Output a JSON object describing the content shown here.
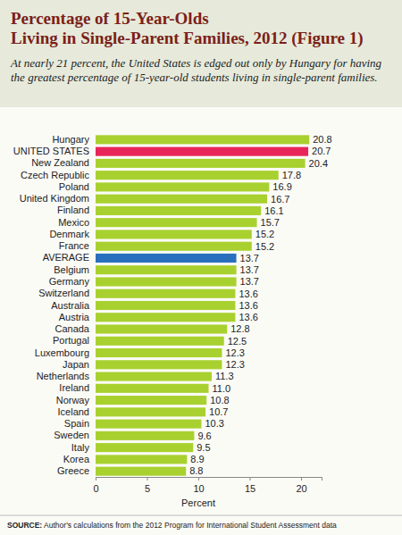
{
  "chart_data": {
    "type": "bar",
    "orientation": "horizontal",
    "title": [
      "Percentage of 15-Year-Olds",
      "Living in Single-Parent Families, 2012 (Figure 1)"
    ],
    "subtitle": "At nearly 21 percent, the United States is edged out only by Hungary for having the greatest percentage of 15-year-old students living in single-parent families.",
    "categories": [
      "Hungary",
      "UNITED STATES",
      "New Zealand",
      "Czech Republic",
      "Poland",
      "United Kingdom",
      "Finland",
      "Mexico",
      "Denmark",
      "France",
      "AVERAGE",
      "Belgium",
      "Germany",
      "Switzerland",
      "Australia",
      "Austria",
      "Canada",
      "Portugal",
      "Luxembourg",
      "Japan",
      "Netherlands",
      "Ireland",
      "Norway",
      "Iceland",
      "Spain",
      "Sweden",
      "Italy",
      "Korea",
      "Greece"
    ],
    "values": [
      20.8,
      20.7,
      20.4,
      17.8,
      16.9,
      16.7,
      16.1,
      15.7,
      15.2,
      15.2,
      13.7,
      13.7,
      13.7,
      13.6,
      13.6,
      13.6,
      12.8,
      12.5,
      12.3,
      12.3,
      11.3,
      11.0,
      10.8,
      10.7,
      10.3,
      9.6,
      9.5,
      8.9,
      8.8
    ],
    "value_labels": [
      "20.8",
      "20.7",
      "20.4",
      "17.8",
      "16.9",
      "16.7",
      "16.1",
      "15.7",
      "15.2",
      "15.2",
      "13.7",
      "13.7",
      "13.7",
      "13.6",
      "13.6",
      "13.6",
      "12.8",
      "12.5",
      "12.3",
      "12.3",
      "11.3",
      "11.0",
      "10.8",
      "10.7",
      "10.3",
      "9.6",
      "9.5",
      "8.9",
      "8.8"
    ],
    "colors": [
      "#a8d12f",
      "#e8265a",
      "#a8d12f",
      "#a8d12f",
      "#a8d12f",
      "#a8d12f",
      "#a8d12f",
      "#a8d12f",
      "#a8d12f",
      "#a8d12f",
      "#2a6fbd",
      "#a8d12f",
      "#a8d12f",
      "#a8d12f",
      "#a8d12f",
      "#a8d12f",
      "#a8d12f",
      "#a8d12f",
      "#a8d12f",
      "#a8d12f",
      "#a8d12f",
      "#a8d12f",
      "#a8d12f",
      "#a8d12f",
      "#a8d12f",
      "#a8d12f",
      "#a8d12f",
      "#a8d12f",
      "#a8d12f"
    ],
    "data_labels": true,
    "xlim": [
      0,
      22
    ],
    "xticks": [
      0,
      5,
      10,
      15,
      20
    ],
    "x_label": "Percent",
    "source": "SOURCE: Author's calculations from the 2012 Program for International Student Assessment data"
  }
}
